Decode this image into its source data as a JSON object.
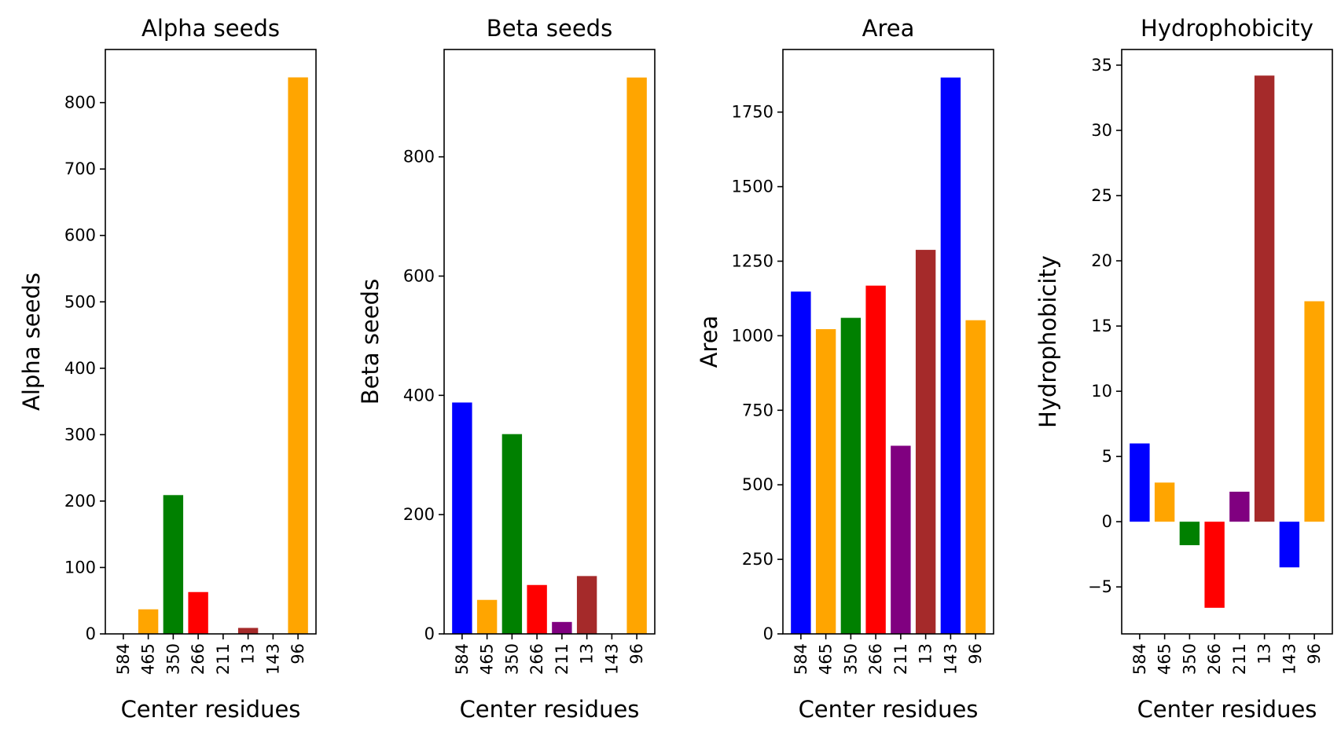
{
  "chart_data": [
    {
      "type": "bar",
      "title": "Alpha seeds",
      "xlabel": "Center residues",
      "ylabel": "Alpha seeds",
      "categories": [
        "584",
        "465",
        "350",
        "266",
        "211",
        "13",
        "143",
        "96"
      ],
      "values": [
        0,
        37,
        209,
        63,
        0,
        9,
        0,
        838
      ],
      "colors": [
        "#0000ff",
        "#ffa500",
        "#008000",
        "#ff0000",
        "#800080",
        "#a52a2a",
        "#0000ff",
        "#ffa500"
      ],
      "ylim": [
        0,
        880
      ],
      "yticks": [
        0,
        100,
        200,
        300,
        400,
        500,
        600,
        700,
        800
      ],
      "ytick_labels": [
        "0",
        "100",
        "200",
        "300",
        "400",
        "500",
        "600",
        "700",
        "800"
      ]
    },
    {
      "type": "bar",
      "title": "Beta seeds",
      "xlabel": "Center residues",
      "ylabel": "Beta seeds",
      "categories": [
        "584",
        "465",
        "350",
        "266",
        "211",
        "13",
        "143",
        "96"
      ],
      "values": [
        388,
        57,
        335,
        82,
        20,
        97,
        0,
        933
      ],
      "colors": [
        "#0000ff",
        "#ffa500",
        "#008000",
        "#ff0000",
        "#800080",
        "#a52a2a",
        "#0000ff",
        "#ffa500"
      ],
      "ylim": [
        0,
        980
      ],
      "yticks": [
        0,
        200,
        400,
        600,
        800
      ],
      "ytick_labels": [
        "0",
        "200",
        "400",
        "600",
        "800"
      ]
    },
    {
      "type": "bar",
      "title": "Area",
      "xlabel": "Center residues",
      "ylabel": "Area",
      "categories": [
        "584",
        "465",
        "350",
        "266",
        "211",
        "13",
        "143",
        "96"
      ],
      "values": [
        1148,
        1022,
        1060,
        1168,
        631,
        1288,
        1866,
        1052
      ],
      "colors": [
        "#0000ff",
        "#ffa500",
        "#008000",
        "#ff0000",
        "#800080",
        "#a52a2a",
        "#0000ff",
        "#ffa500"
      ],
      "ylim": [
        0,
        1960
      ],
      "yticks": [
        0,
        250,
        500,
        750,
        1000,
        1250,
        1500,
        1750
      ],
      "ytick_labels": [
        "0",
        "250",
        "500",
        "750",
        "1000",
        "1250",
        "1500",
        "1750"
      ]
    },
    {
      "type": "bar",
      "title": "Hydrophobicity",
      "xlabel": "Center residues",
      "ylabel": "Hydrophobicity",
      "categories": [
        "584",
        "465",
        "350",
        "266",
        "211",
        "13",
        "143",
        "96"
      ],
      "values": [
        6.0,
        3.0,
        -1.8,
        -6.6,
        2.3,
        34.2,
        -3.5,
        16.9
      ],
      "colors": [
        "#0000ff",
        "#ffa500",
        "#008000",
        "#ff0000",
        "#800080",
        "#a52a2a",
        "#0000ff",
        "#ffa500"
      ],
      "ylim": [
        -8.6,
        36.2
      ],
      "yticks": [
        -5,
        0,
        5,
        10,
        15,
        20,
        25,
        30,
        35
      ],
      "ytick_labels": [
        "−5",
        "0",
        "5",
        "10",
        "15",
        "20",
        "25",
        "30",
        "35"
      ]
    }
  ]
}
